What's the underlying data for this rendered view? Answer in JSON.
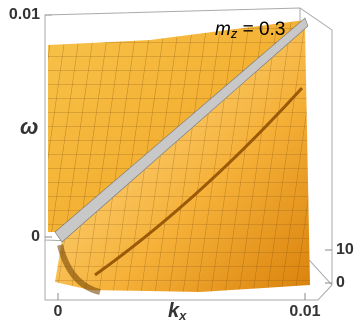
{
  "chart_data": {
    "type": "surface3d",
    "annotation": {
      "base": "m",
      "sub": "z",
      "rest": " = 0.3"
    },
    "x_label": {
      "base": "k",
      "sub": "x"
    },
    "y_label": "ω",
    "xlim": [
      0,
      0.01
    ],
    "xticks": [
      0,
      0.01
    ],
    "ylim": [
      0,
      0.01
    ],
    "yticks": [
      0,
      0.01
    ],
    "zlim": [
      0,
      10
    ],
    "zticks": [
      0,
      10
    ],
    "color": "#f5a623"
  }
}
